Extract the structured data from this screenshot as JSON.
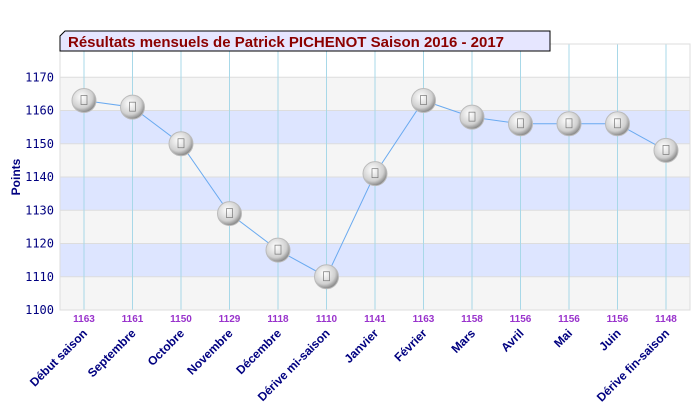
{
  "chart_data": {
    "type": "line",
    "title": "Résultats mensuels de Patrick PICHENOT Saison 2016 - 2017",
    "ylabel": "Points",
    "xlabel": "",
    "ylim": [
      1100,
      1180
    ],
    "yticks": [
      1100,
      1110,
      1120,
      1130,
      1140,
      1150,
      1160,
      1170
    ],
    "grid": true,
    "categories": [
      "Début saison",
      "Septembre",
      "Octobre",
      "Novembre",
      "Décembre",
      "Dérive mi-saison",
      "Janvier",
      "Février",
      "Mars",
      "Avril",
      "Mai",
      "Juin",
      "Dérive fin-saison"
    ],
    "series": [
      {
        "values": [
          1163,
          1161,
          1150,
          1129,
          1118,
          1110,
          1141,
          1163,
          1158,
          1156,
          1156,
          1156,
          1148
        ]
      }
    ],
    "colors": {
      "line": "#6aaaf0",
      "band": "#dde5ff",
      "band_alt": "#f5f5f5",
      "vgrid": "#a8d8e8",
      "title_text": "#8b0000",
      "title_bg": "#e6e6ff",
      "axis_text": "#000080",
      "value_label": "#9933cc"
    }
  }
}
